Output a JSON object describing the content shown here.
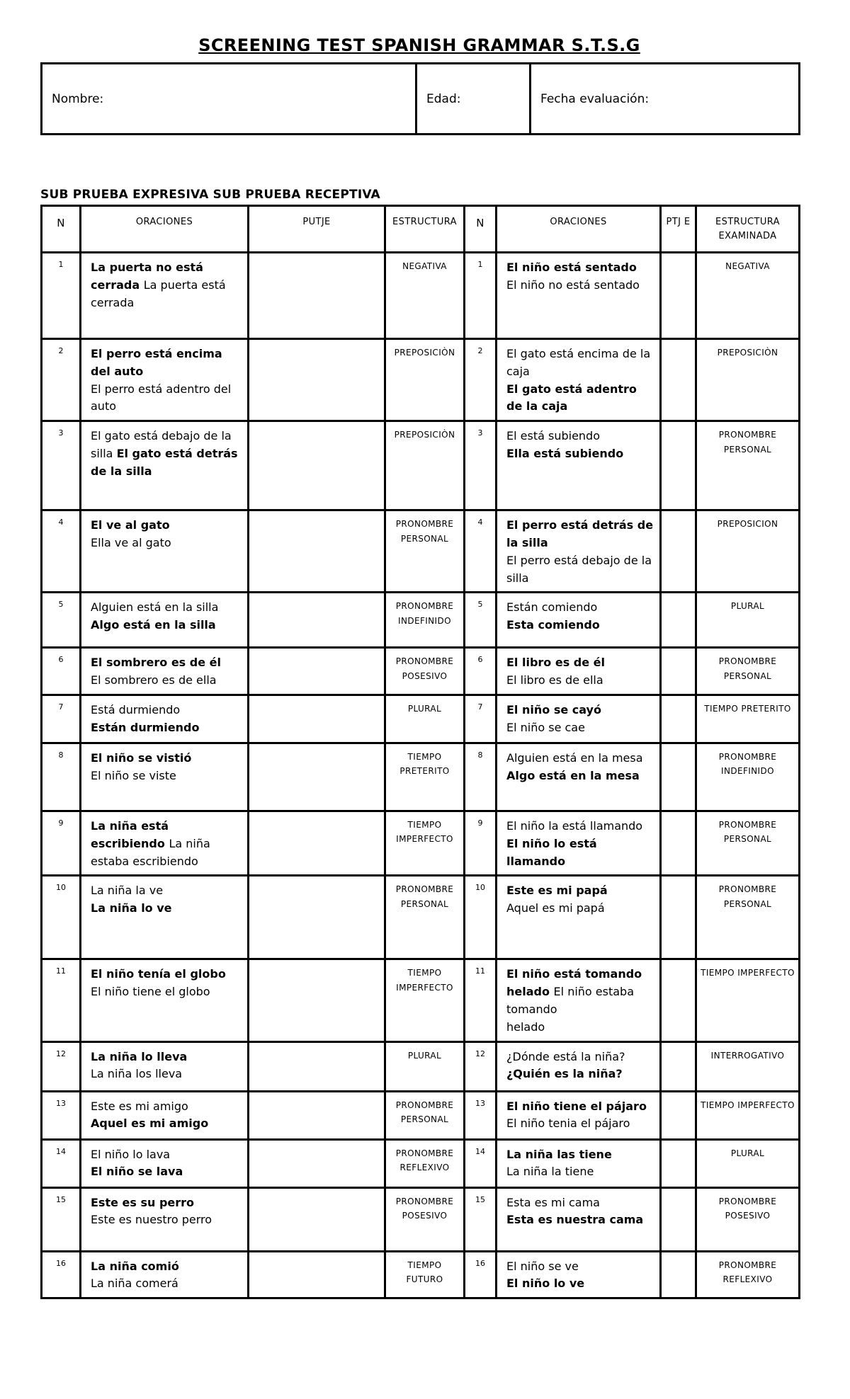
{
  "page": {
    "title": "SCREENING TEST SPANISH GRAMMAR S.T.S.G",
    "subtitle": "SUB PRUEBA EXPRESIVA SUB PRUEBA RECEPTIVA"
  },
  "info_table": {
    "nombre_label": "Nombre:",
    "edad_label": "Edad:",
    "fecha_label": "Fecha evaluación:"
  },
  "main_table": {
    "headers": {
      "n_left": "N",
      "oraciones_left": "ORACIONES",
      "putje": "PUTJE",
      "estructura_left": "ESTRUCTURA",
      "n_right": "N",
      "oraciones_right": "ORACIONES",
      "ptje": "PTJ E",
      "estructura_right": "ESTRUCTURA EXAMINADA"
    },
    "rows": [
      {
        "n": "1",
        "expresiva": {
          "segments": [
            {
              "text": "La puerta no está cerrada ",
              "bold": true
            },
            {
              "text": "La puerta está cerrada",
              "bold": false
            }
          ],
          "estructura": "NEGATIVA"
        },
        "receptiva": {
          "segments": [
            {
              "text": "El niño está sentado",
              "bold": true
            },
            {
              "text": "El niño no está sentado",
              "bold": false,
              "br": true
            }
          ],
          "estructura": "NEGATIVA"
        }
      },
      {
        "n": "2",
        "expresiva": {
          "segments": [
            {
              "text": "El perro está encima del auto",
              "bold": true
            },
            {
              "text": "El perro está adentro del auto",
              "bold": false,
              "br": true
            }
          ],
          "estructura": "PREPOSICIÒN"
        },
        "receptiva": {
          "segments": [
            {
              "text": "El gato está encima de la caja",
              "bold": false
            },
            {
              "text": "El gato está adentro de la caja",
              "bold": true,
              "br": true
            }
          ],
          "estructura": "PREPOSICIÒN"
        }
      },
      {
        "n": "3",
        "expresiva": {
          "segments": [
            {
              "text": "El gato está debajo de la silla ",
              "bold": false
            },
            {
              "text": "El gato está detrás de la silla",
              "bold": true
            }
          ],
          "estructura": "PREPOSICIÒN"
        },
        "receptiva": {
          "segments": [
            {
              "text": "El está subiendo",
              "bold": false
            },
            {
              "text": "Ella está subiendo",
              "bold": true,
              "br": true
            }
          ],
          "estructura": "PRONOMBRE PERSONAL"
        }
      },
      {
        "n": "4",
        "expresiva": {
          "segments": [
            {
              "text": "El ve al gato",
              "bold": true
            },
            {
              "text": "Ella ve al gato",
              "bold": false,
              "br": true
            }
          ],
          "estructura": "PRONOMBRE PERSONAL"
        },
        "receptiva": {
          "segments": [
            {
              "text": "El perro está detrás de la silla",
              "bold": true
            },
            {
              "text": "El perro está debajo de la silla",
              "bold": false,
              "br": true
            }
          ],
          "estructura": "PREPOSICION"
        }
      },
      {
        "n": "5",
        "expresiva": {
          "segments": [
            {
              "text": "Alguien está en la silla",
              "bold": false
            },
            {
              "text": "Algo está en la silla",
              "bold": true,
              "br": true
            }
          ],
          "estructura": "PRONOMBRE INDEFINIDO"
        },
        "receptiva": {
          "segments": [
            {
              "text": "Están comiendo",
              "bold": false
            },
            {
              "text": "Esta comiendo",
              "bold": true,
              "br": true
            }
          ],
          "estructura": "PLURAL"
        }
      },
      {
        "n": "6",
        "expresiva": {
          "segments": [
            {
              "text": "El sombrero es de él",
              "bold": true
            },
            {
              "text": "El sombrero es de ella",
              "bold": false,
              "br": true
            }
          ],
          "estructura": "PRONOMBRE POSESIVO"
        },
        "receptiva": {
          "segments": [
            {
              "text": "El libro es de él",
              "bold": true
            },
            {
              "text": "El libro es de ella",
              "bold": false,
              "br": true
            }
          ],
          "estructura": "PRONOMBRE PERSONAL"
        }
      },
      {
        "n": "7",
        "expresiva": {
          "segments": [
            {
              "text": "Está durmiendo",
              "bold": false
            },
            {
              "text": "Están durmiendo",
              "bold": true,
              "br": true
            }
          ],
          "estructura": "PLURAL"
        },
        "receptiva": {
          "segments": [
            {
              "text": "El niño se cayó",
              "bold": true
            },
            {
              "text": "El niño se cae",
              "bold": false,
              "br": true
            }
          ],
          "estructura": "TIEMPO PRETERITO"
        }
      },
      {
        "n": "8",
        "expresiva": {
          "segments": [
            {
              "text": "El niño se vistió",
              "bold": true
            },
            {
              "text": "El niño se viste",
              "bold": false,
              "br": true
            }
          ],
          "estructura": "TIEMPO PRETERITO"
        },
        "receptiva": {
          "segments": [
            {
              "text": "Alguien está en la mesa",
              "bold": false
            },
            {
              "text": "Algo está en la mesa",
              "bold": true,
              "br": true
            }
          ],
          "estructura": "PRONOMBRE INDEFINIDO"
        }
      },
      {
        "n": "9",
        "expresiva": {
          "segments": [
            {
              "text": "La niña está escribiendo ",
              "bold": true
            },
            {
              "text": "La niña estaba escribiendo",
              "bold": false
            }
          ],
          "estructura": "TIEMPO IMPERFECTO"
        },
        "receptiva": {
          "segments": [
            {
              "text": "El niño la está llamando",
              "bold": false
            },
            {
              "text": "El niño lo está llamando",
              "bold": true,
              "br": true
            }
          ],
          "estructura": "PRONOMBRE PERSONAL"
        }
      },
      {
        "n": "10",
        "expresiva": {
          "segments": [
            {
              "text": "La niña la ve",
              "bold": false
            },
            {
              "text": "La niña lo ve",
              "bold": true,
              "br": true
            }
          ],
          "estructura": "PRONOMBRE PERSONAL"
        },
        "receptiva": {
          "segments": [
            {
              "text": "Este es mi papá",
              "bold": true
            },
            {
              "text": "Aquel es mi papá",
              "bold": false,
              "br": true
            }
          ],
          "estructura": "PRONOMBRE PERSONAL"
        }
      },
      {
        "n": "11",
        "expresiva": {
          "segments": [
            {
              "text": "El niño tenía el globo",
              "bold": true
            },
            {
              "text": "El niño tiene el globo",
              "bold": false,
              "br": true
            }
          ],
          "estructura": "TIEMPO IMPERFECTO"
        },
        "receptiva": {
          "segments": [
            {
              "text": "El niño está tomando helado ",
              "bold": true
            },
            {
              "text": "El niño estaba tomando",
              "bold": false
            },
            {
              "text": "helado",
              "bold": false,
              "br": true
            }
          ],
          "estructura": "TIEMPO IMPERFECTO"
        }
      },
      {
        "n": "12",
        "expresiva": {
          "segments": [
            {
              "text": "La niña lo lleva",
              "bold": true
            },
            {
              "text": "La niña los lleva",
              "bold": false,
              "br": true
            }
          ],
          "estructura": "PLURAL"
        },
        "receptiva": {
          "segments": [
            {
              "text": "¿Dónde está la niña?",
              "bold": false
            },
            {
              "text": "¿Quién es la niña?",
              "bold": true,
              "br": true
            }
          ],
          "estructura": "INTERROGATIVO"
        }
      },
      {
        "n": "13",
        "expresiva": {
          "segments": [
            {
              "text": "Este es mi amigo",
              "bold": false
            },
            {
              "text": "Aquel es mi amigo",
              "bold": true,
              "br": true
            }
          ],
          "estructura": "PRONOMBRE PERSONAL"
        },
        "receptiva": {
          "segments": [
            {
              "text": "El niño tiene el pájaro",
              "bold": true
            },
            {
              "text": "El niño tenia el pájaro",
              "bold": false,
              "br": true
            }
          ],
          "estructura": "TIEMPO IMPERFECTO"
        }
      },
      {
        "n": "14",
        "expresiva": {
          "segments": [
            {
              "text": "El niño lo lava",
              "bold": false
            },
            {
              "text": "El niño se lava",
              "bold": true,
              "br": true
            }
          ],
          "estructura": "PRONOMBRE REFLEXIVO"
        },
        "receptiva": {
          "segments": [
            {
              "text": "La niña las tiene",
              "bold": true
            },
            {
              "text": "La niña la tiene",
              "bold": false,
              "br": true
            }
          ],
          "estructura": "PLURAL"
        }
      },
      {
        "n": "15",
        "expresiva": {
          "segments": [
            {
              "text": "Este es su perro",
              "bold": true
            },
            {
              "text": "Este es nuestro perro",
              "bold": false,
              "br": true
            }
          ],
          "estructura": "PRONOMBRE POSESIVO"
        },
        "receptiva": {
          "segments": [
            {
              "text": "Esta es mi cama",
              "bold": false
            },
            {
              "text": "Esta es nuestra cama",
              "bold": true,
              "br": true
            }
          ],
          "estructura": "PRONOMBRE POSESIVO"
        }
      },
      {
        "n": "16",
        "expresiva": {
          "segments": [
            {
              "text": "La niña comió",
              "bold": true
            },
            {
              "text": "La niña comerá",
              "bold": false,
              "br": true
            }
          ],
          "estructura": "TIEMPO FUTURO"
        },
        "receptiva": {
          "segments": [
            {
              "text": "El niño se ve",
              "bold": false
            },
            {
              "text": "El niño lo ve",
              "bold": true,
              "br": true
            }
          ],
          "estructura": "PRONOMBRE REFLEXIVO"
        }
      }
    ]
  }
}
